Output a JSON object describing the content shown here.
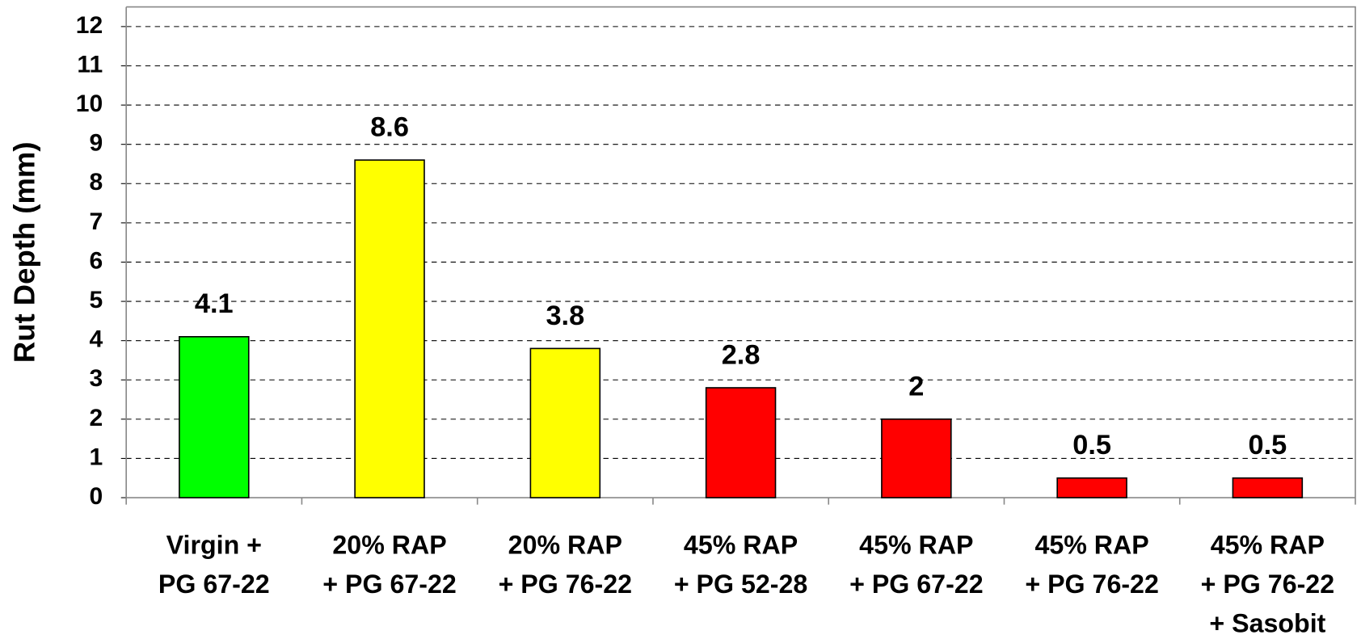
{
  "chart_data": {
    "type": "bar",
    "y_label": "Rut Depth (mm)",
    "categories": [
      [
        "Virgin +",
        "PG 67-22"
      ],
      [
        "20% RAP",
        "+ PG 67-22"
      ],
      [
        "20% RAP",
        "+ PG 76-22"
      ],
      [
        "45% RAP",
        "+ PG 52-28"
      ],
      [
        "45% RAP",
        "+ PG 67-22"
      ],
      [
        "45% RAP",
        "+ PG 76-22"
      ],
      [
        "45% RAP",
        "+ PG 76-22",
        "+ Sasobit"
      ]
    ],
    "values": [
      4.1,
      8.6,
      3.8,
      2.8,
      2,
      0.5,
      0.5
    ],
    "colors": [
      "#00ff00",
      "#ffff00",
      "#ffff00",
      "#ff0000",
      "#ff0000",
      "#ff0000",
      "#ff0000"
    ],
    "ylim": [
      0,
      12.5
    ],
    "yticks": [
      0,
      1,
      2,
      3,
      4,
      5,
      6,
      7,
      8,
      9,
      10,
      11,
      12
    ],
    "grid": true
  }
}
